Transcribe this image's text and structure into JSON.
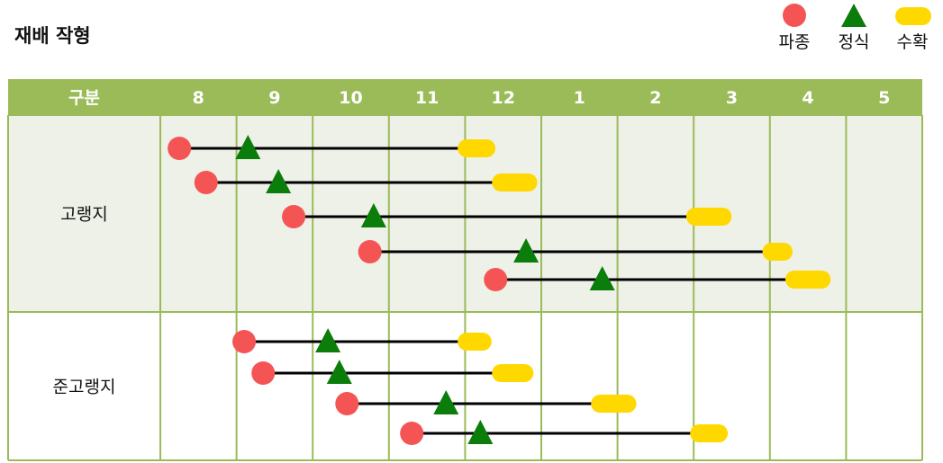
{
  "title": "재배 작형",
  "legend": [
    {
      "key": "sow",
      "label": "파종",
      "shape": "circle",
      "color": "#f55454"
    },
    {
      "key": "plant",
      "label": "정식",
      "shape": "triangle",
      "color": "#0a7d0a"
    },
    {
      "key": "harvest",
      "label": "수확",
      "shape": "pill",
      "color": "#ffd800"
    }
  ],
  "colors": {
    "header_bg": "#9bbb59",
    "header_text": "#ffffff",
    "grid_line": "#9bbb59",
    "row_shade": "#eef1e7",
    "line": "#000000"
  },
  "chart_data": {
    "type": "gantt",
    "header_label": "구분",
    "months": [
      "8",
      "9",
      "10",
      "11",
      "12",
      "1",
      "2",
      "3",
      "4",
      "5"
    ],
    "note_units": "positions are in months from the start of August (0 = Aug 1, 10 = end of May)",
    "groups": [
      {
        "name": "고랭지",
        "shaded": true,
        "rows": [
          {
            "sow": 0.25,
            "plant": 1.15,
            "harvest_start": 3.95,
            "harvest_end": 4.35
          },
          {
            "sow": 0.6,
            "plant": 1.55,
            "harvest_start": 4.4,
            "harvest_end": 4.9
          },
          {
            "sow": 1.75,
            "plant": 2.8,
            "harvest_start": 6.95,
            "harvest_end": 7.45
          },
          {
            "sow": 2.75,
            "plant": 4.8,
            "harvest_start": 7.95,
            "harvest_end": 8.25
          },
          {
            "sow": 4.4,
            "plant": 5.8,
            "harvest_start": 8.25,
            "harvest_end": 8.75
          }
        ]
      },
      {
        "name": "준고랭지",
        "shaded": false,
        "rows": [
          {
            "sow": 1.1,
            "plant": 2.2,
            "harvest_start": 3.95,
            "harvest_end": 4.3
          },
          {
            "sow": 1.35,
            "plant": 2.35,
            "harvest_start": 4.4,
            "harvest_end": 4.85
          },
          {
            "sow": 2.45,
            "plant": 3.75,
            "harvest_start": 5.7,
            "harvest_end": 6.2
          },
          {
            "sow": 3.3,
            "plant": 4.2,
            "harvest_start": 7.0,
            "harvest_end": 7.4
          }
        ]
      }
    ]
  }
}
